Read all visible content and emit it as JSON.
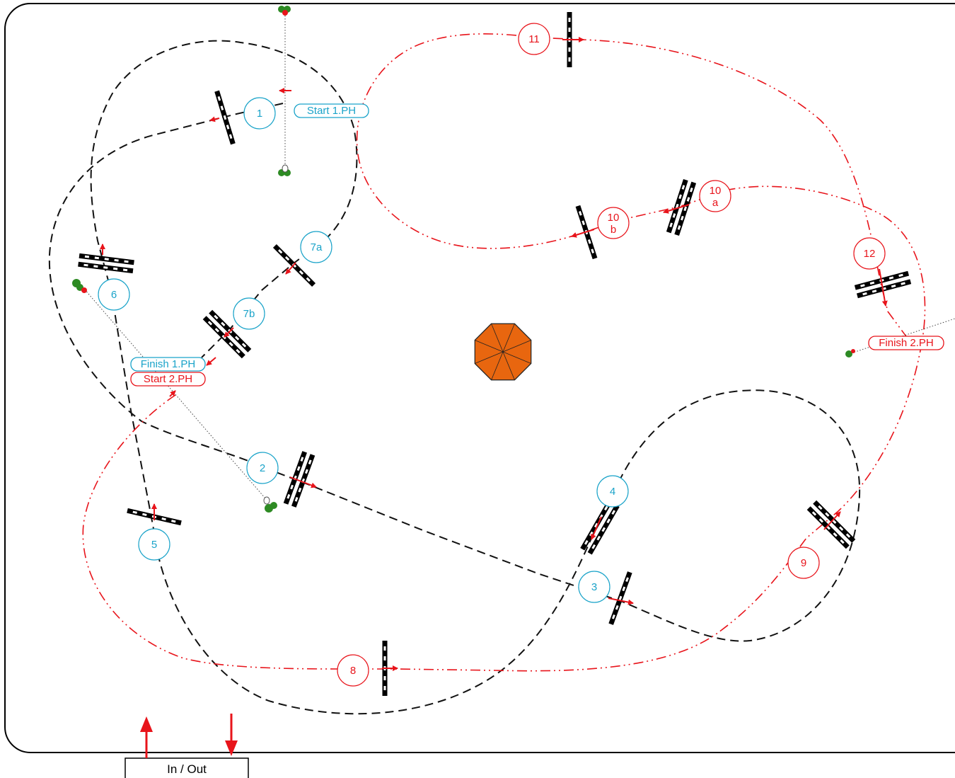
{
  "colors": {
    "phase1": "#1aa3c9",
    "phase2": "#e8141b",
    "track": "#111111",
    "obstacle": "#000000",
    "flag_red": "#e8141b",
    "flag_green": "#2d8a23",
    "center_fill": "#e8660f"
  },
  "obstacles": [
    {
      "key": "o1",
      "label": "1",
      "sub": "",
      "phase": "phase1"
    },
    {
      "key": "o2",
      "label": "2",
      "sub": "",
      "phase": "phase1"
    },
    {
      "key": "o3",
      "label": "3",
      "sub": "",
      "phase": "phase1"
    },
    {
      "key": "o4",
      "label": "4",
      "sub": "",
      "phase": "phase1"
    },
    {
      "key": "o5",
      "label": "5",
      "sub": "",
      "phase": "phase1"
    },
    {
      "key": "o6",
      "label": "6",
      "sub": "",
      "phase": "phase1"
    },
    {
      "key": "o7a",
      "label": "7a",
      "sub": "",
      "phase": "phase1"
    },
    {
      "key": "o7b",
      "label": "7b",
      "sub": "",
      "phase": "phase1"
    },
    {
      "key": "o8",
      "label": "8",
      "sub": "",
      "phase": "phase2"
    },
    {
      "key": "o9",
      "label": "9",
      "sub": "",
      "phase": "phase2"
    },
    {
      "key": "o10a",
      "label": "10",
      "sub": "a",
      "phase": "phase2"
    },
    {
      "key": "o10b",
      "label": "10",
      "sub": "b",
      "phase": "phase2"
    },
    {
      "key": "o11",
      "label": "11",
      "sub": "",
      "phase": "phase2"
    },
    {
      "key": "o12",
      "label": "12",
      "sub": "",
      "phase": "phase2"
    }
  ],
  "labels": {
    "start1": "Start 1.PH",
    "finish1": "Finish 1.PH",
    "start2": "Start 2.PH",
    "finish2": "Finish 2.PH"
  },
  "gate": {
    "label": "In / Out"
  }
}
